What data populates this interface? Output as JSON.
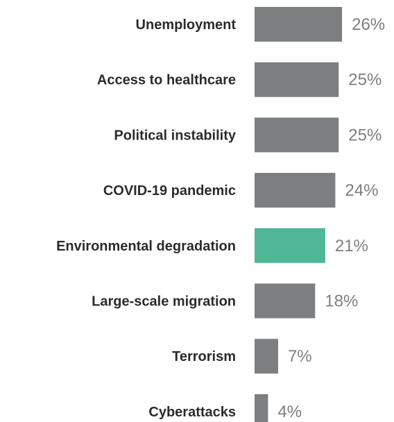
{
  "chart_data": {
    "type": "bar",
    "orientation": "horizontal",
    "categories": [
      "Unemployment",
      "Access to healthcare",
      "Political instability",
      "COVID-19 pandemic",
      "Environmental degradation",
      "Large-scale migration",
      "Terrorism",
      "Cyberattacks"
    ],
    "values": [
      26,
      25,
      25,
      24,
      21,
      18,
      7,
      4
    ],
    "value_labels": [
      "26%",
      "25%",
      "25%",
      "24%",
      "21%",
      "18%",
      "7%",
      "4%"
    ],
    "unit": "%",
    "highlight_index": 4,
    "grid": false,
    "legend": "none",
    "colors": {
      "bar": "#7d7e80",
      "highlight": "#4fb696",
      "label_text": "#2b2b2b",
      "value_text": "#7d7e80"
    }
  }
}
